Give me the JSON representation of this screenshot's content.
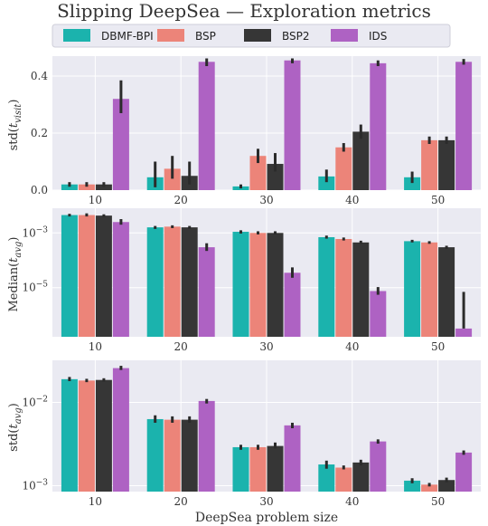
{
  "title": "Slipping DeepSea — Exploration metrics",
  "colors": {
    "DBMF-BPI": "#1bb3ad",
    "BSP": "#ec8479",
    "BSP2": "#363636",
    "IDS": "#ae62c3",
    "panel_bg": "#eaeaf2",
    "grid": "#ffffff",
    "errorbar": "#2b2b2b"
  },
  "legend": {
    "placement": "top-center",
    "entries": [
      "DBMF-BPI",
      "BSP",
      "BSP2",
      "IDS"
    ]
  },
  "chart_data": [
    {
      "type": "bar",
      "categories": [
        "10",
        "20",
        "30",
        "40",
        "50"
      ],
      "ylabel": "std(t_visit)",
      "yscale": "linear",
      "ylim": [
        0,
        0.47
      ],
      "yticks": [
        0.0,
        0.2,
        0.4
      ],
      "ytick_labels": [
        "0.0",
        "0.2",
        "0.4"
      ],
      "xlabel": "",
      "grid": true,
      "series": [
        {
          "name": "DBMF-BPI",
          "values": [
            0.02,
            0.045,
            0.013,
            0.048,
            0.045
          ],
          "err_low": [
            0.012,
            0.01,
            0.006,
            0.028,
            0.025
          ],
          "err_high": [
            0.028,
            0.1,
            0.02,
            0.072,
            0.065
          ]
        },
        {
          "name": "BSP",
          "values": [
            0.02,
            0.075,
            0.12,
            0.15,
            0.175
          ],
          "err_low": [
            0.012,
            0.04,
            0.095,
            0.135,
            0.162
          ],
          "err_high": [
            0.028,
            0.12,
            0.145,
            0.165,
            0.188
          ]
        },
        {
          "name": "BSP2",
          "values": [
            0.02,
            0.05,
            0.092,
            0.205,
            0.175
          ],
          "err_low": [
            0.012,
            0.02,
            0.065,
            0.18,
            0.162
          ],
          "err_high": [
            0.028,
            0.1,
            0.13,
            0.23,
            0.188
          ]
        },
        {
          "name": "IDS",
          "values": [
            0.32,
            0.45,
            0.455,
            0.445,
            0.45
          ],
          "err_low": [
            0.27,
            0.435,
            0.445,
            0.435,
            0.44
          ],
          "err_high": [
            0.385,
            0.462,
            0.462,
            0.455,
            0.46
          ]
        }
      ]
    },
    {
      "type": "bar",
      "categories": [
        "10",
        "20",
        "30",
        "40",
        "50"
      ],
      "ylabel": "Median(t_avg)",
      "yscale": "log",
      "ylim": [
        1.6e-07,
        0.008
      ],
      "yticks": [
        1e-05,
        0.001
      ],
      "ytick_labels": [
        "10−5",
        "10−3"
      ],
      "xlabel": "",
      "grid": true,
      "series": [
        {
          "name": "DBMF-BPI",
          "values": [
            0.0045,
            0.0016,
            0.0011,
            0.0007,
            0.0005
          ],
          "err_low": [
            0.004,
            0.0014,
            0.00095,
            0.00062,
            0.00045
          ],
          "err_high": [
            0.005,
            0.0018,
            0.00125,
            0.0008,
            0.00056
          ]
        },
        {
          "name": "BSP",
          "values": [
            0.0045,
            0.0017,
            0.001,
            0.0006,
            0.00045
          ],
          "err_low": [
            0.004,
            0.0015,
            0.00088,
            0.00053,
            0.0004
          ],
          "err_high": [
            0.0052,
            0.0019,
            0.00115,
            0.00068,
            0.0005
          ]
        },
        {
          "name": "BSP2",
          "values": [
            0.0043,
            0.0016,
            0.001,
            0.00045,
            0.0003
          ],
          "err_low": [
            0.0038,
            0.0014,
            0.00088,
            0.0004,
            0.00026
          ],
          "err_high": [
            0.0048,
            0.0018,
            0.00115,
            0.00052,
            0.00034
          ]
        },
        {
          "name": "IDS",
          "values": [
            0.0025,
            0.0003,
            3.5e-05,
            7.5e-06,
            3.2e-07
          ],
          "err_low": [
            0.002,
            0.00022,
            2.3e-05,
            5.5e-06,
            3.2e-07
          ],
          "err_high": [
            0.0032,
            0.00042,
            5.5e-05,
            1.05e-05,
            7e-06
          ]
        }
      ]
    },
    {
      "type": "bar",
      "categories": [
        "10",
        "20",
        "30",
        "40",
        "50"
      ],
      "ylabel": "std(t_avg)",
      "yscale": "log",
      "ylim": [
        0.00085,
        0.032
      ],
      "yticks": [
        0.001,
        0.01
      ],
      "ytick_labels": [
        "10−3",
        "10−2"
      ],
      "xlabel": "DeepSea problem size",
      "grid": true,
      "series": [
        {
          "name": "DBMF-BPI",
          "values": [
            0.019,
            0.0063,
            0.0029,
            0.0018,
            0.00115
          ],
          "err_low": [
            0.018,
            0.0057,
            0.0027,
            0.0016,
            0.00107
          ],
          "err_high": [
            0.0202,
            0.007,
            0.0031,
            0.002,
            0.00123
          ]
        },
        {
          "name": "BSP",
          "values": [
            0.0183,
            0.0062,
            0.0029,
            0.00165,
            0.00103
          ],
          "err_low": [
            0.0175,
            0.0057,
            0.0027,
            0.00157,
            0.00098
          ],
          "err_high": [
            0.0192,
            0.0068,
            0.0031,
            0.00175,
            0.00108
          ]
        },
        {
          "name": "BSP2",
          "values": [
            0.0186,
            0.0062,
            0.003,
            0.0019,
            0.00117
          ],
          "err_low": [
            0.0178,
            0.0057,
            0.0028,
            0.00175,
            0.0011
          ],
          "err_high": [
            0.0195,
            0.0068,
            0.0033,
            0.00205,
            0.00125
          ]
        },
        {
          "name": "IDS",
          "values": [
            0.0258,
            0.0104,
            0.0053,
            0.0034,
            0.0025
          ],
          "err_low": [
            0.0245,
            0.0097,
            0.0049,
            0.0032,
            0.00235
          ],
          "err_high": [
            0.0275,
            0.011,
            0.0057,
            0.0036,
            0.00265
          ]
        }
      ]
    }
  ]
}
